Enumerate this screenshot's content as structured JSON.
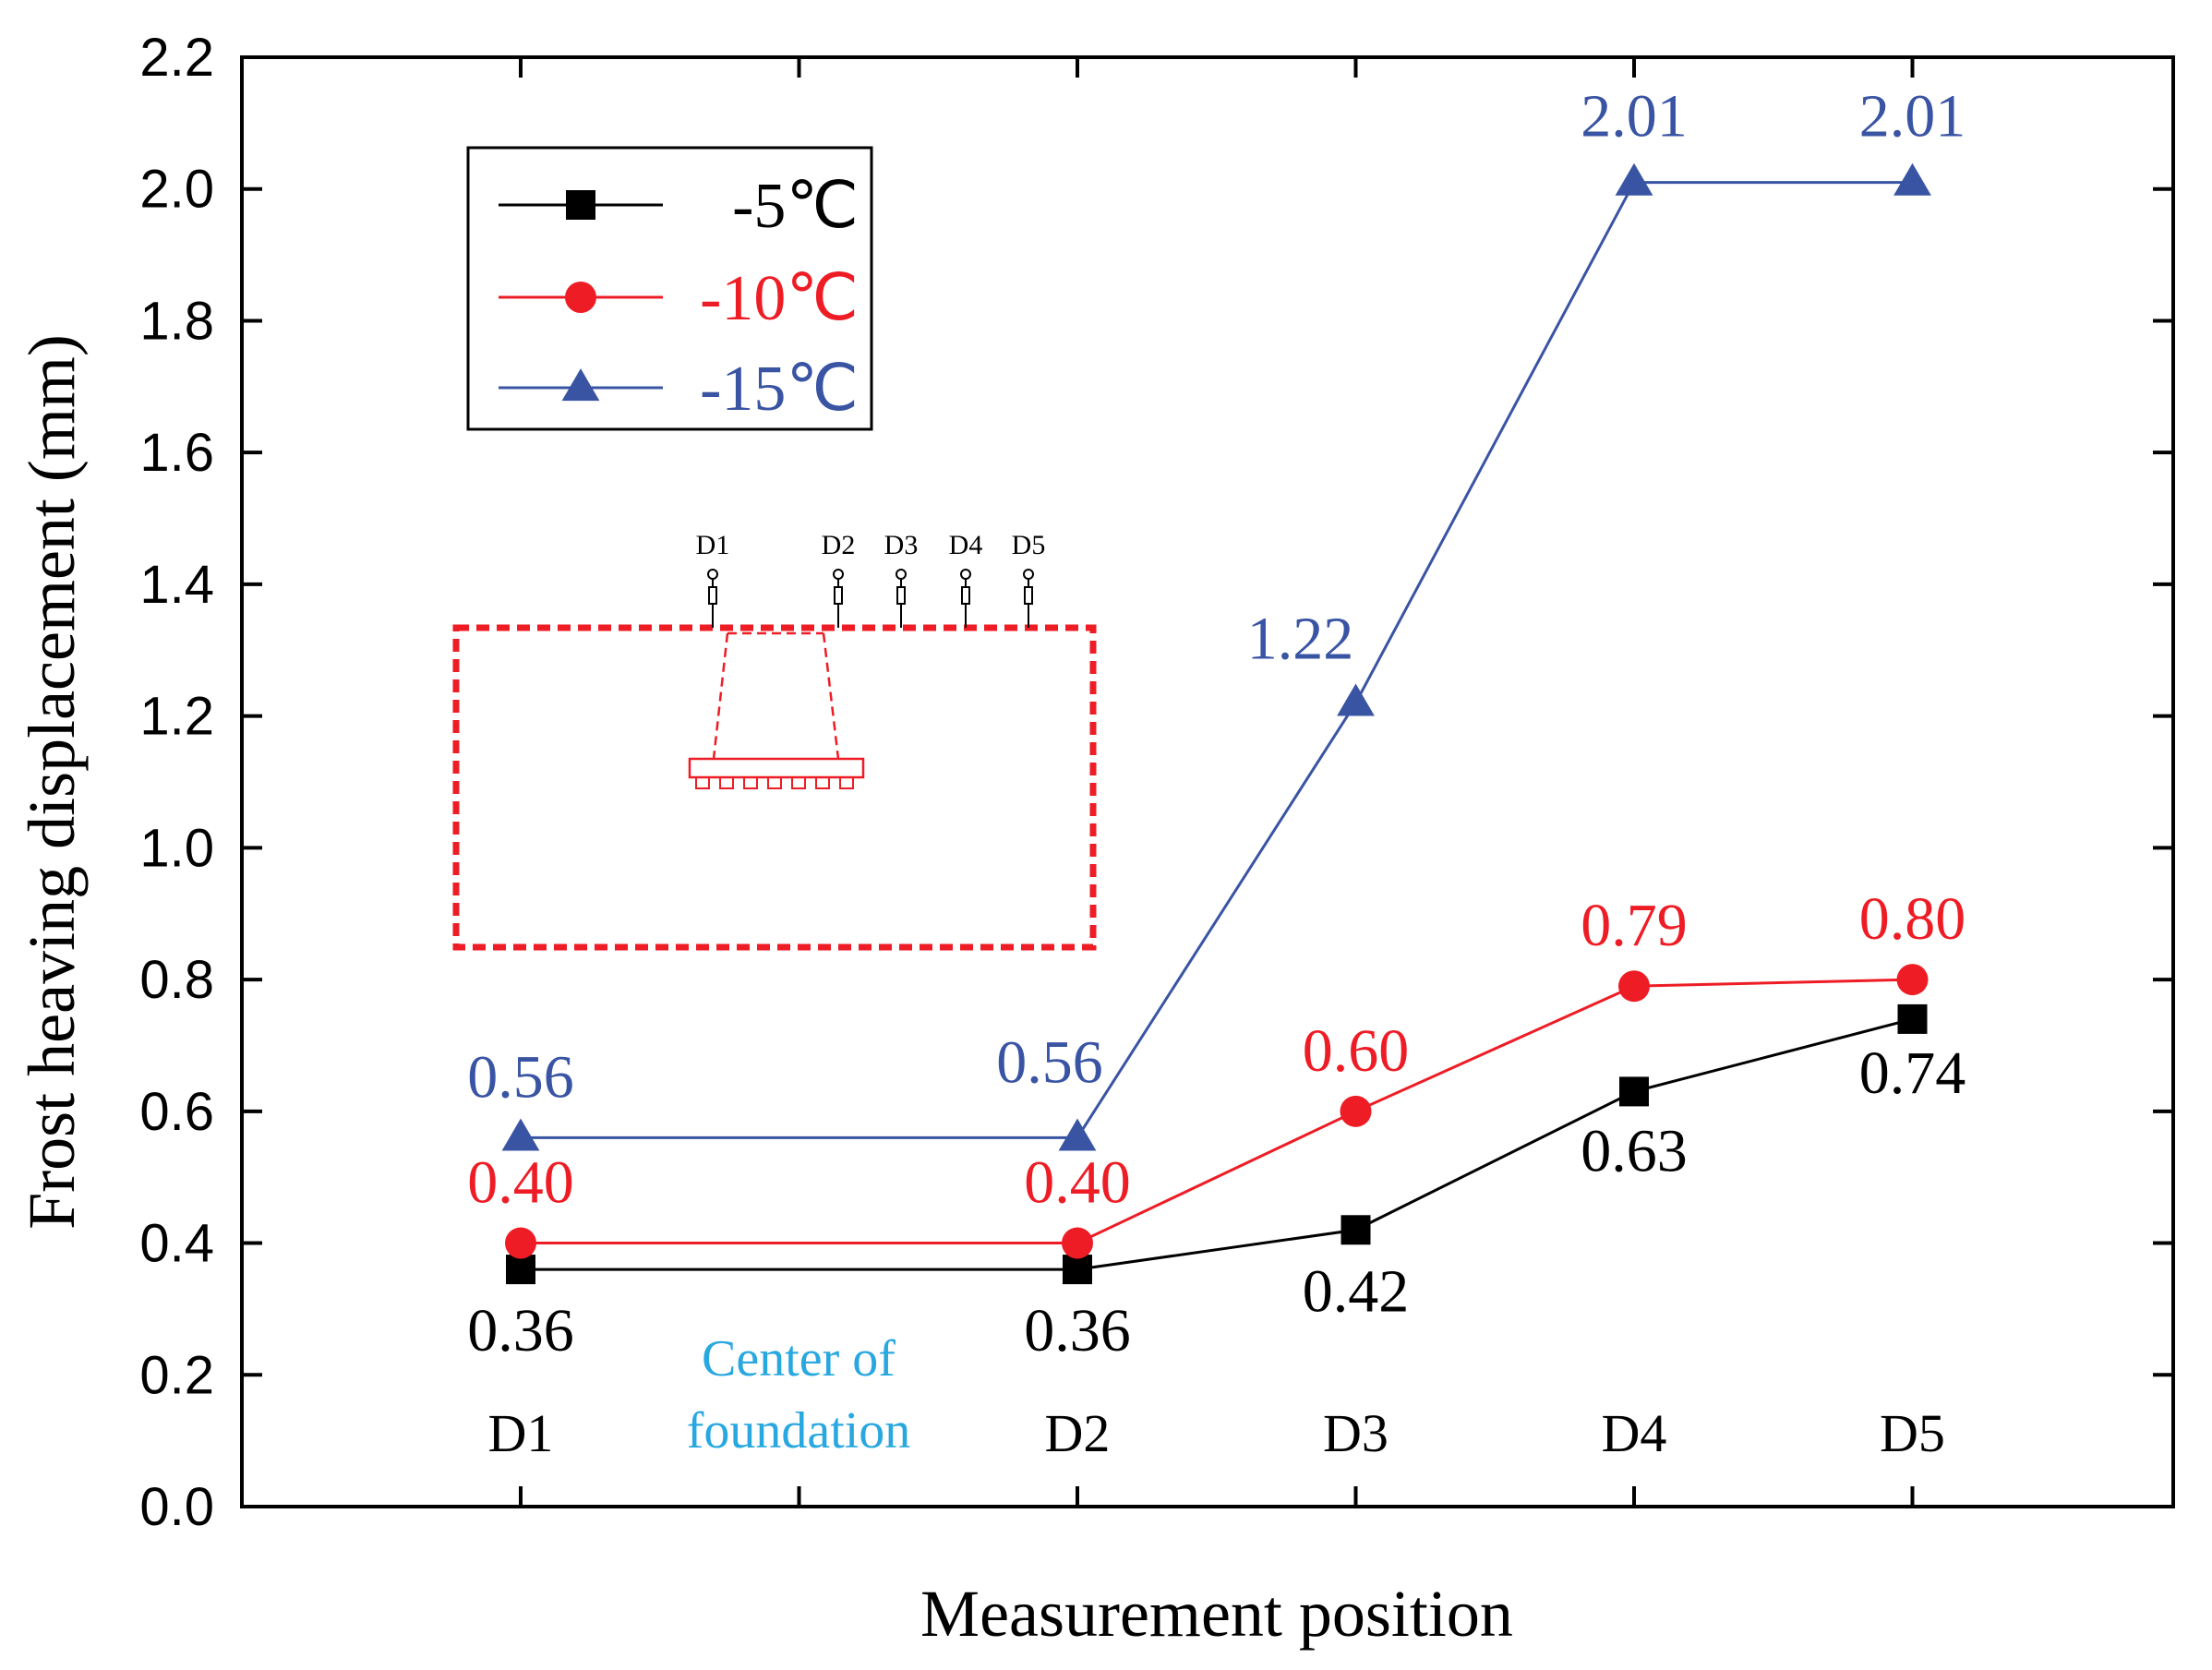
{
  "chart_data": {
    "type": "line",
    "title": "",
    "xlabel": "Measurement position",
    "ylabel": "Frost heaving displacement (mm)",
    "ylim": [
      0.0,
      2.2
    ],
    "yticks": [
      "0.0",
      "0.2",
      "0.4",
      "0.6",
      "0.8",
      "1.0",
      "1.2",
      "1.4",
      "1.6",
      "1.8",
      "2.0",
      "2.2"
    ],
    "categories": [
      "D1",
      "D2",
      "D3",
      "D4",
      "D5"
    ],
    "legend_position": "top-left",
    "series": [
      {
        "name": "-5℃",
        "marker": "square",
        "color": "#000000",
        "x": [
          0,
          2,
          3,
          4,
          5
        ],
        "values": [
          0.36,
          0.36,
          0.42,
          0.63,
          0.74
        ],
        "labels": [
          "0.36",
          "0.36",
          "0.42",
          "0.63",
          "0.74"
        ]
      },
      {
        "name": "-10℃",
        "marker": "circle",
        "color": "#ee1c25",
        "x": [
          0,
          2,
          3,
          4,
          5
        ],
        "values": [
          0.4,
          0.4,
          0.6,
          0.79,
          0.8
        ],
        "labels": [
          "0.40",
          "0.40",
          "0.60",
          "0.79",
          "0.80"
        ]
      },
      {
        "name": "-15℃",
        "marker": "triangle",
        "color": "#3a54a4",
        "x": [
          0,
          2,
          3,
          4,
          5
        ],
        "values": [
          0.56,
          0.56,
          1.22,
          2.01,
          2.01
        ],
        "labels": [
          "0.56",
          "0.56",
          "1.22",
          "2.01",
          "2.01"
        ]
      }
    ],
    "annotation": {
      "line1": "Center of",
      "line2": "foundation",
      "color": "#29a8e0"
    },
    "inset": {
      "labels": [
        "D1",
        "D2",
        "D3",
        "D4",
        "D5"
      ],
      "color": "#ee1c25"
    }
  }
}
